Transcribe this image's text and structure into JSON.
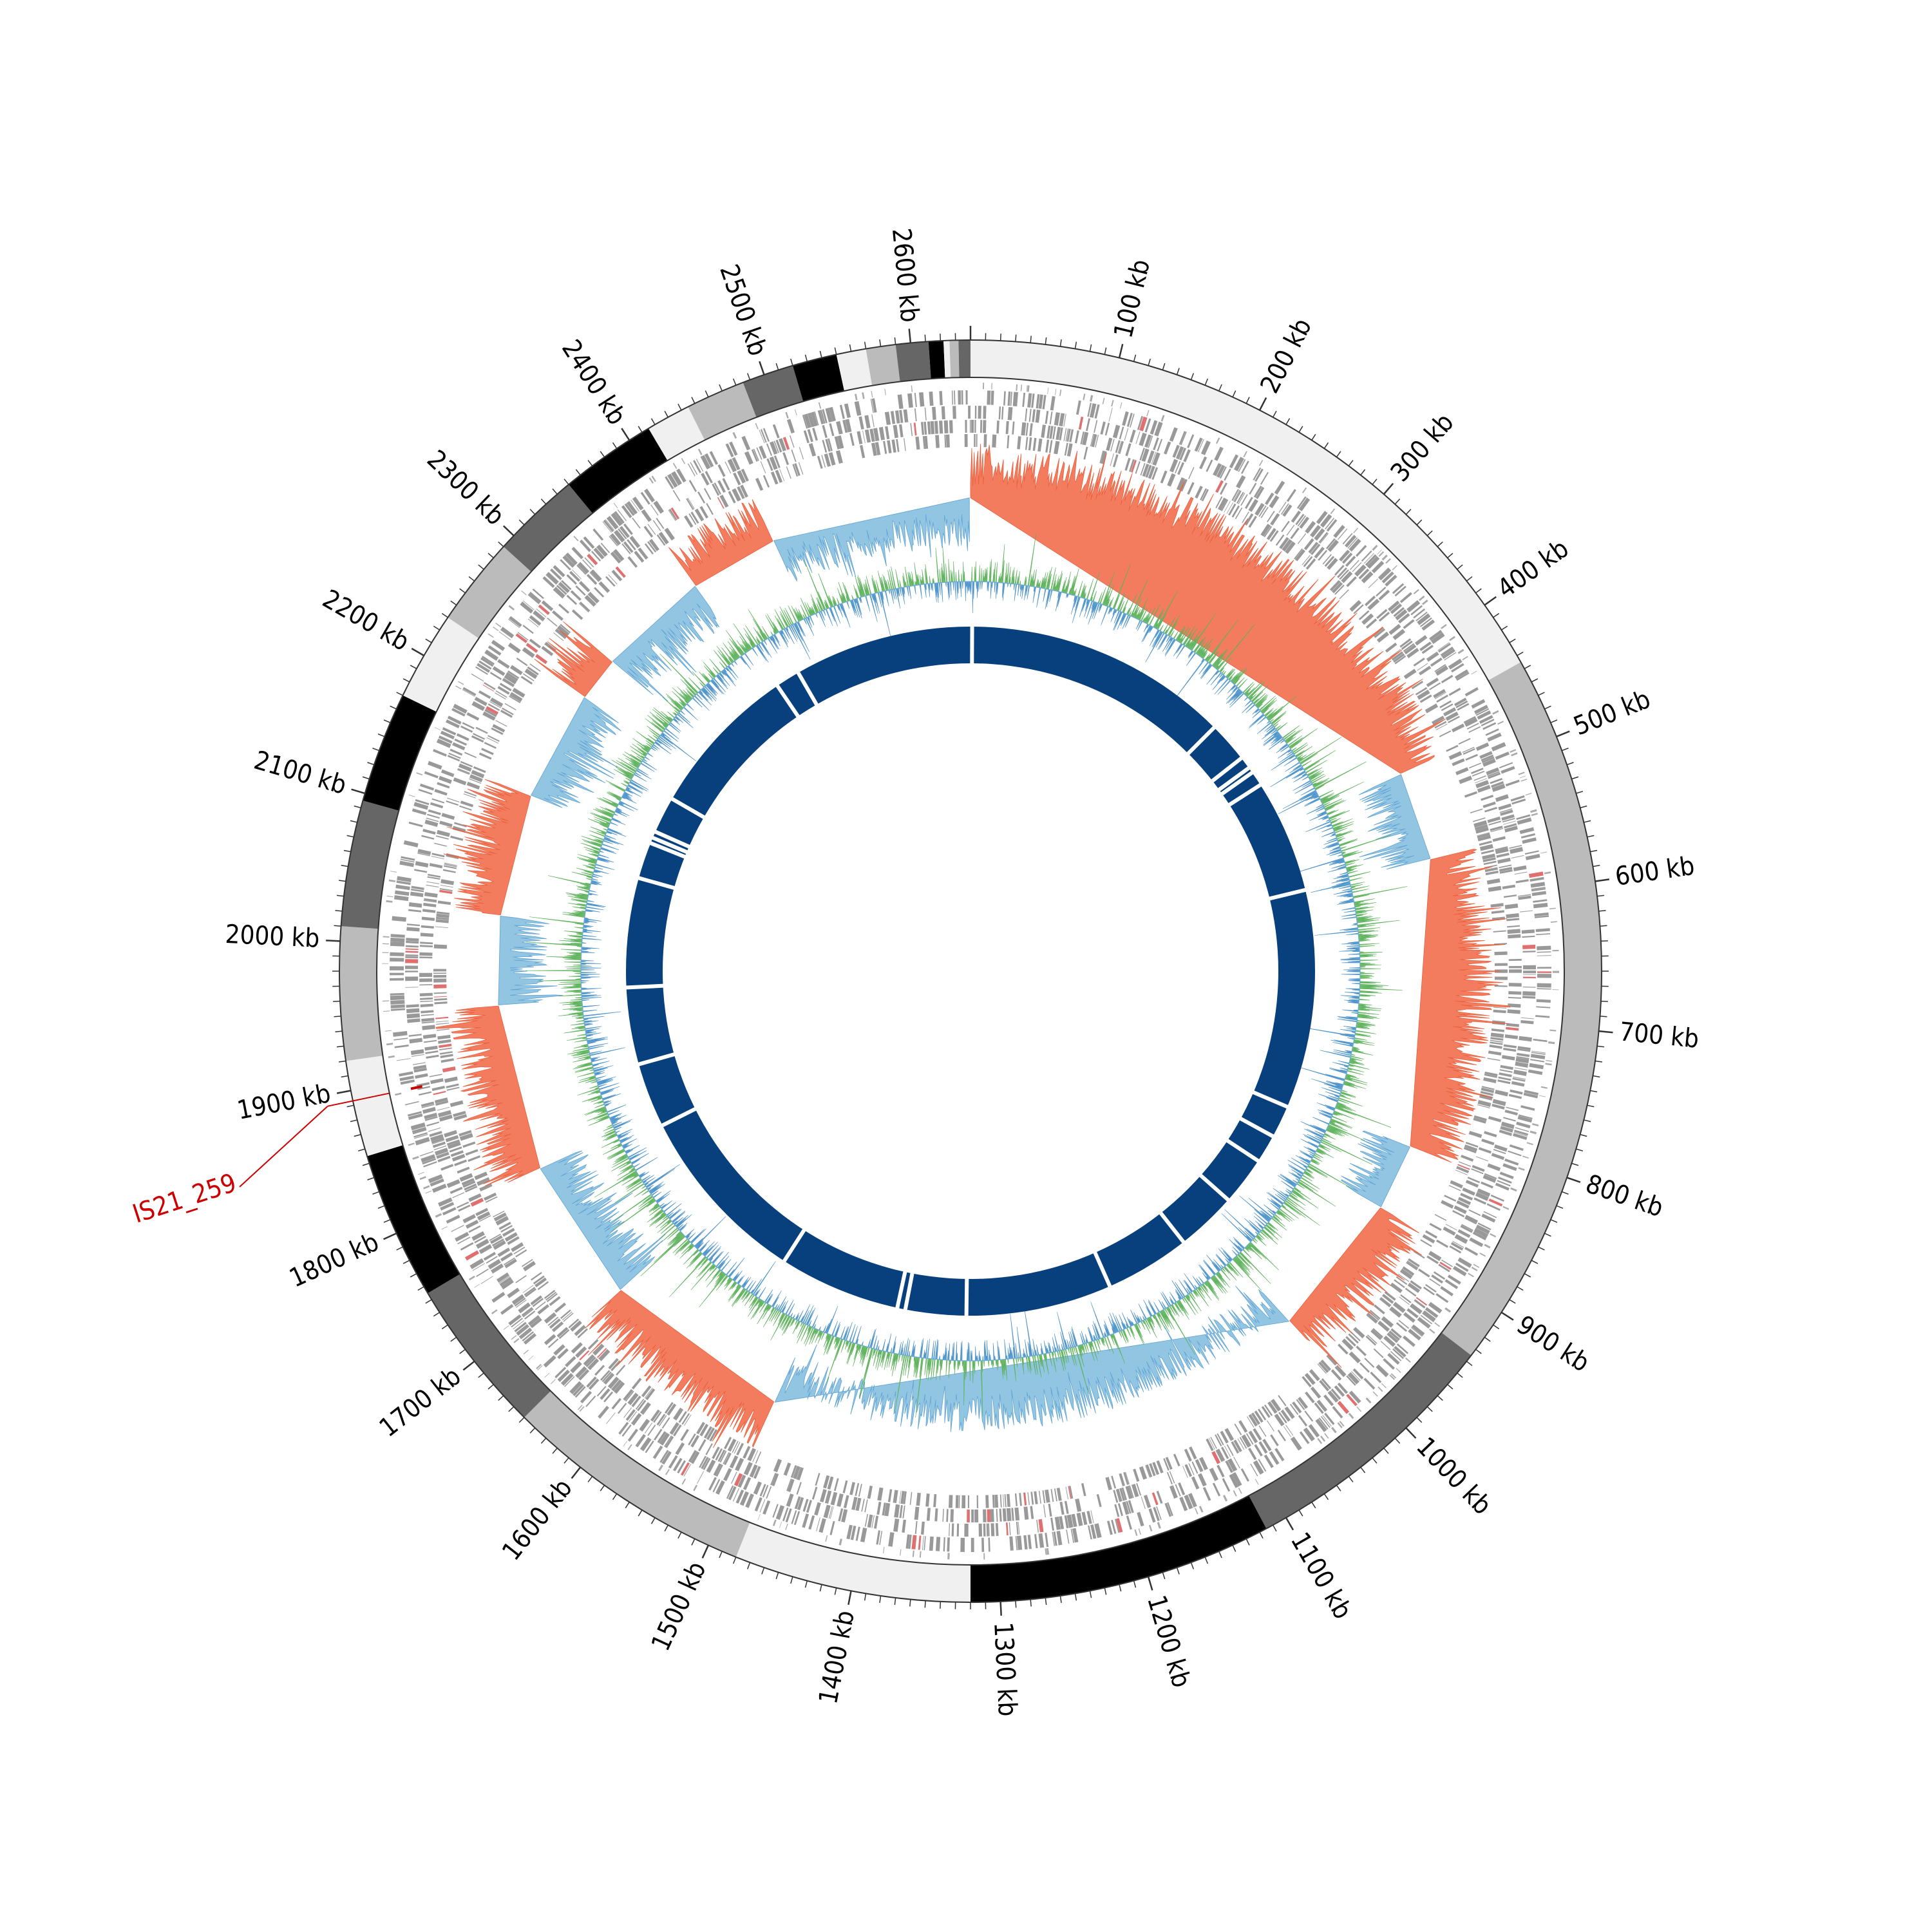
{
  "map": {
    "genome_length_kb": 2640,
    "tick_labels": [
      "100 kb",
      "200 kb",
      "300 kb",
      "400 kb",
      "500 kb",
      "600 kb",
      "700 kb",
      "800 kb",
      "900 kb",
      "1000 kb",
      "1100 kb",
      "1200 kb",
      "1300 kb",
      "1400 kb",
      "1500 kb",
      "1600 kb",
      "1700 kb",
      "1800 kb",
      "1900 kb",
      "2000 kb",
      "2100 kb",
      "2200 kb",
      "2300 kb",
      "2400 kb",
      "2500 kb",
      "2600 kb"
    ],
    "annotation": {
      "label": "IS21_259",
      "position_kb": 1893,
      "color": "#cc0000"
    },
    "colors": {
      "gc_skew_positive": "#f47c5e",
      "gc_skew_negative": "#91c5e2",
      "gc_content_positive": "#7cc47a",
      "gc_content_negative": "#6aaad8",
      "contig_blocks": "#08407e",
      "features": "#999999",
      "outline": "#333333"
    },
    "karyotype_bands": [
      {
        "start": 0,
        "end": 445,
        "shade": "#f0f0f0"
      },
      {
        "start": 445,
        "end": 935,
        "shade": "#bbbbbb"
      },
      {
        "start": 935,
        "end": 1115,
        "shade": "#666666"
      },
      {
        "start": 1115,
        "end": 1320,
        "shade": "#000000"
      },
      {
        "start": 1320,
        "end": 1480,
        "shade": "#f0f0f0"
      },
      {
        "start": 1480,
        "end": 1650,
        "shade": "#bbbbbb"
      },
      {
        "start": 1650,
        "end": 1755,
        "shade": "#666666"
      },
      {
        "start": 1755,
        "end": 1855,
        "shade": "#000000"
      },
      {
        "start": 1855,
        "end": 1920,
        "shade": "#f0f0f0"
      },
      {
        "start": 1920,
        "end": 2010,
        "shade": "#bbbbbb"
      },
      {
        "start": 2010,
        "end": 2095,
        "shade": "#666666"
      },
      {
        "start": 2095,
        "end": 2170,
        "shade": "#000000"
      },
      {
        "start": 2170,
        "end": 2230,
        "shade": "#f0f0f0"
      },
      {
        "start": 2230,
        "end": 2290,
        "shade": "#bbbbbb"
      },
      {
        "start": 2290,
        "end": 2350,
        "shade": "#666666"
      },
      {
        "start": 2350,
        "end": 2415,
        "shade": "#000000"
      },
      {
        "start": 2415,
        "end": 2445,
        "shade": "#f0f0f0"
      },
      {
        "start": 2445,
        "end": 2485,
        "shade": "#bbbbbb"
      },
      {
        "start": 2485,
        "end": 2520,
        "shade": "#666666"
      },
      {
        "start": 2520,
        "end": 2550,
        "shade": "#000000"
      },
      {
        "start": 2550,
        "end": 2570,
        "shade": "#f0f0f0"
      },
      {
        "start": 2570,
        "end": 2590,
        "shade": "#bbbbbb"
      },
      {
        "start": 2590,
        "end": 2612,
        "shade": "#666666"
      },
      {
        "start": 2612,
        "end": 2622,
        "shade": "#000000"
      },
      {
        "start": 2622,
        "end": 2626,
        "shade": "#f0f0f0"
      },
      {
        "start": 2626,
        "end": 2632,
        "shade": "#bbbbbb"
      },
      {
        "start": 2632,
        "end": 2640,
        "shade": "#666666"
      }
    ],
    "gc_skew_regions_kb": [
      {
        "start": 0,
        "end": 480,
        "sign": 1
      },
      {
        "start": 480,
        "end": 560,
        "sign": -1
      },
      {
        "start": 560,
        "end": 820,
        "sign": 1
      },
      {
        "start": 820,
        "end": 880,
        "sign": -1
      },
      {
        "start": 880,
        "end": 1010,
        "sign": 1
      },
      {
        "start": 1010,
        "end": 1500,
        "sign": -1
      },
      {
        "start": 1500,
        "end": 1670,
        "sign": 1
      },
      {
        "start": 1670,
        "end": 1800,
        "sign": -1
      },
      {
        "start": 1800,
        "end": 1950,
        "sign": 1
      },
      {
        "start": 1950,
        "end": 2030,
        "sign": -1
      },
      {
        "start": 2030,
        "end": 2140,
        "sign": 1
      },
      {
        "start": 2140,
        "end": 2240,
        "sign": -1
      },
      {
        "start": 2240,
        "end": 2280,
        "sign": 1
      },
      {
        "start": 2280,
        "end": 2380,
        "sign": -1
      },
      {
        "start": 2380,
        "end": 2460,
        "sign": 1
      },
      {
        "start": 2460,
        "end": 2640,
        "sign": -1
      }
    ],
    "contig_breaks_kb": [
      2,
      330,
      380,
      395,
      402,
      420,
      560,
      830,
      870,
      905,
      965,
      1040,
      1145,
      1325,
      1400,
      1410,
      1560,
      1785,
      1865,
      1960,
      2095,
      2140,
      2147,
      2155,
      2200,
      2390,
      2420
    ]
  }
}
